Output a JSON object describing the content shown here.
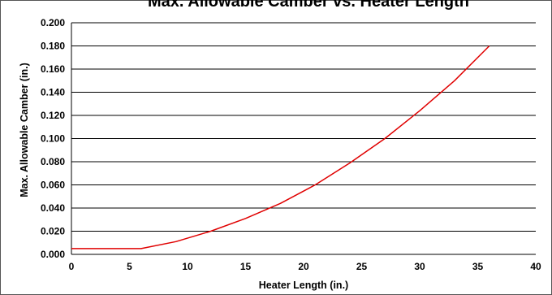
{
  "chart_data": {
    "type": "line",
    "title": "Max. Allowable Camber vs. Heater Length",
    "xlabel": "Heater Length (in.)",
    "ylabel": "Max. Allowable Camber (in.)",
    "xlim": [
      0,
      40
    ],
    "ylim": [
      0,
      0.2
    ],
    "xticks": [
      "0",
      "5",
      "10",
      "15",
      "20",
      "25",
      "30",
      "35",
      "40"
    ],
    "yticks": [
      "0.000",
      "0.020",
      "0.040",
      "0.060",
      "0.080",
      "0.100",
      "0.120",
      "0.140",
      "0.160",
      "0.180",
      "0.200"
    ],
    "grid": true,
    "series": [
      {
        "color": "#e00000",
        "x": [
          0,
          6,
          9,
          12,
          15,
          18,
          21,
          24,
          27,
          30,
          33,
          36
        ],
        "y": [
          0.005,
          0.005,
          0.011,
          0.02,
          0.031,
          0.044,
          0.06,
          0.079,
          0.1,
          0.124,
          0.15,
          0.18
        ]
      }
    ]
  }
}
